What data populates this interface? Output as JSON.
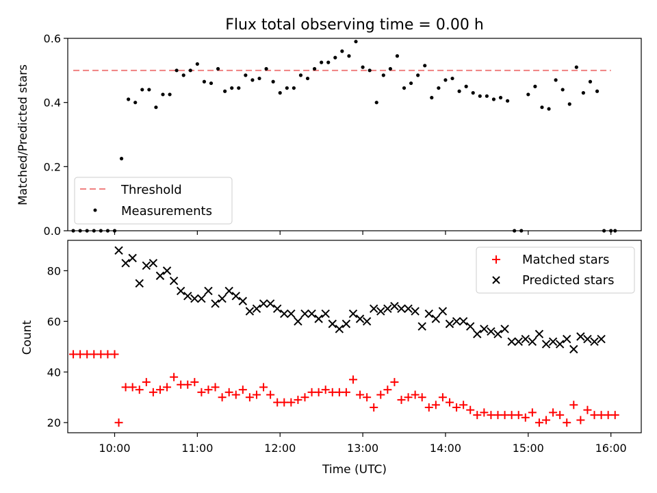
{
  "title": "Flux total observing time = 0.00 h",
  "chart_data": [
    {
      "type": "scatter",
      "ylabel": "Matched/Predicted stars",
      "ylim": [
        0,
        0.6
      ],
      "xlim": [
        "09:26",
        "16:22"
      ],
      "yticks": [
        "0.0",
        "0.2",
        "0.4",
        "0.6"
      ],
      "legend": {
        "position": "lower-left",
        "threshold_label": "Threshold",
        "measurements_label": "Measurements"
      },
      "threshold": {
        "name": "Threshold",
        "value": 0.5,
        "x_start": "9:30",
        "x_end": "16:00",
        "color": "#f08080"
      },
      "series": [
        {
          "name": "Measurements",
          "color": "#000000",
          "x": [
            "9:30",
            "9:35",
            "9:40",
            "9:45",
            "9:50",
            "9:55",
            "10:00",
            "10:05",
            "10:10",
            "10:15",
            "10:20",
            "10:25",
            "10:30",
            "10:35",
            "10:40",
            "10:45",
            "10:50",
            "10:55",
            "11:00",
            "11:05",
            "11:10",
            "11:15",
            "11:20",
            "11:25",
            "11:30",
            "11:35",
            "11:40",
            "11:45",
            "11:50",
            "11:55",
            "12:00",
            "12:05",
            "12:10",
            "12:15",
            "12:20",
            "12:25",
            "12:30",
            "12:35",
            "12:40",
            "12:45",
            "12:50",
            "12:55",
            "13:00",
            "13:05",
            "13:10",
            "13:15",
            "13:20",
            "13:25",
            "13:30",
            "13:35",
            "13:40",
            "13:45",
            "13:50",
            "13:55",
            "14:00",
            "14:05",
            "14:10",
            "14:15",
            "14:20",
            "14:25",
            "14:30",
            "14:35",
            "14:40",
            "14:45",
            "14:50",
            "14:55",
            "15:00",
            "15:05",
            "15:10",
            "15:15",
            "15:20",
            "15:25",
            "15:30",
            "15:35",
            "15:40",
            "15:45",
            "15:50",
            "15:55",
            "16:00",
            "16:03"
          ],
          "y": [
            0.0,
            0.0,
            0.0,
            0.0,
            0.0,
            0.0,
            0.0,
            0.225,
            0.41,
            0.4,
            0.44,
            0.44,
            0.385,
            0.425,
            0.425,
            0.5,
            0.485,
            0.5,
            0.52,
            0.465,
            0.46,
            0.505,
            0.435,
            0.445,
            0.445,
            0.485,
            0.47,
            0.475,
            0.505,
            0.465,
            0.43,
            0.445,
            0.445,
            0.485,
            0.475,
            0.505,
            0.525,
            0.525,
            0.54,
            0.56,
            0.545,
            0.59,
            0.51,
            0.5,
            0.4,
            0.485,
            0.505,
            0.545,
            0.445,
            0.46,
            0.485,
            0.515,
            0.415,
            0.445,
            0.47,
            0.475,
            0.435,
            0.45,
            0.43,
            0.42,
            0.42,
            0.41,
            0.415,
            0.405,
            0.0,
            0.0,
            0.425,
            0.45,
            0.385,
            0.38,
            0.47,
            0.44,
            0.395,
            0.51,
            0.43,
            0.465,
            0.435,
            0.0,
            0.0,
            0.0
          ]
        }
      ]
    },
    {
      "type": "scatter",
      "ylabel": "Count",
      "xlabel": "Time (UTC)",
      "ylim": [
        16,
        92
      ],
      "xlim": [
        "09:26",
        "16:22"
      ],
      "yticks": [
        "20",
        "40",
        "60",
        "80"
      ],
      "xticks": [
        "10:00",
        "11:00",
        "12:00",
        "13:00",
        "14:00",
        "15:00",
        "16:00"
      ],
      "legend": {
        "position": "top-right",
        "matched_label": "Matched stars",
        "predicted_label": "Predicted stars"
      },
      "series": [
        {
          "name": "Matched stars",
          "marker": "+",
          "color": "#ff0000",
          "x": [
            "9:30",
            "9:35",
            "9:40",
            "9:45",
            "9:50",
            "9:55",
            "10:00",
            "10:03",
            "10:08",
            "10:13",
            "10:18",
            "10:23",
            "10:28",
            "10:33",
            "10:38",
            "10:43",
            "10:48",
            "10:53",
            "10:58",
            "11:03",
            "11:08",
            "11:13",
            "11:18",
            "11:23",
            "11:28",
            "11:33",
            "11:38",
            "11:43",
            "11:48",
            "11:53",
            "11:58",
            "12:03",
            "12:08",
            "12:13",
            "12:18",
            "12:23",
            "12:28",
            "12:33",
            "12:38",
            "12:43",
            "12:48",
            "12:53",
            "12:58",
            "13:03",
            "13:08",
            "13:13",
            "13:18",
            "13:23",
            "13:28",
            "13:33",
            "13:38",
            "13:43",
            "13:48",
            "13:53",
            "13:58",
            "14:03",
            "14:08",
            "14:13",
            "14:18",
            "14:23",
            "14:28",
            "14:33",
            "14:38",
            "14:43",
            "14:48",
            "14:53",
            "14:58",
            "15:03",
            "15:08",
            "15:13",
            "15:18",
            "15:23",
            "15:28",
            "15:33",
            "15:38",
            "15:43",
            "15:48",
            "15:53",
            "15:58",
            "16:03"
          ],
          "y": [
            47,
            47,
            47,
            47,
            47,
            47,
            47,
            20,
            34,
            34,
            33,
            36,
            32,
            33,
            34,
            38,
            35,
            35,
            36,
            32,
            33,
            34,
            30,
            32,
            31,
            33,
            30,
            31,
            34,
            31,
            28,
            28,
            28,
            29,
            30,
            32,
            32,
            33,
            32,
            32,
            32,
            37,
            31,
            30,
            26,
            31,
            33,
            36,
            29,
            30,
            31,
            30,
            26,
            27,
            30,
            28,
            26,
            27,
            25,
            23,
            24,
            23,
            23,
            23,
            23,
            23,
            22,
            24,
            20,
            21,
            24,
            23,
            20,
            27,
            21,
            25,
            23,
            23,
            23,
            23
          ]
        },
        {
          "name": "Predicted stars",
          "marker": "x",
          "color": "#000000",
          "x": [
            "10:03",
            "10:08",
            "10:13",
            "10:18",
            "10:23",
            "10:28",
            "10:33",
            "10:38",
            "10:43",
            "10:48",
            "10:53",
            "10:58",
            "11:03",
            "11:08",
            "11:13",
            "11:18",
            "11:23",
            "11:28",
            "11:33",
            "11:38",
            "11:43",
            "11:48",
            "11:53",
            "11:58",
            "12:03",
            "12:08",
            "12:13",
            "12:18",
            "12:23",
            "12:28",
            "12:33",
            "12:38",
            "12:43",
            "12:48",
            "12:53",
            "12:58",
            "13:03",
            "13:08",
            "13:13",
            "13:18",
            "13:23",
            "13:28",
            "13:33",
            "13:38",
            "13:43",
            "13:48",
            "13:53",
            "13:58",
            "14:03",
            "14:08",
            "14:13",
            "14:18",
            "14:23",
            "14:28",
            "14:33",
            "14:38",
            "14:43",
            "14:48",
            "14:53",
            "14:58",
            "15:03",
            "15:08",
            "15:13",
            "15:18",
            "15:23",
            "15:28",
            "15:33",
            "15:38",
            "15:43",
            "15:48",
            "15:53"
          ],
          "y": [
            88,
            83,
            85,
            75,
            82,
            83,
            78,
            80,
            76,
            72,
            70,
            69,
            69,
            72,
            67,
            69,
            72,
            70,
            68,
            64,
            65,
            67,
            67,
            65,
            63,
            63,
            60,
            63,
            63,
            61,
            63,
            59,
            57,
            59,
            63,
            61,
            60,
            65,
            64,
            65,
            66,
            65,
            65,
            64,
            58,
            63,
            61,
            64,
            59,
            60,
            60,
            58,
            55,
            57,
            56,
            55,
            57,
            52,
            52,
            53,
            52,
            55,
            51,
            52,
            51,
            53,
            49,
            54,
            53,
            52,
            53
          ]
        }
      ]
    }
  ]
}
